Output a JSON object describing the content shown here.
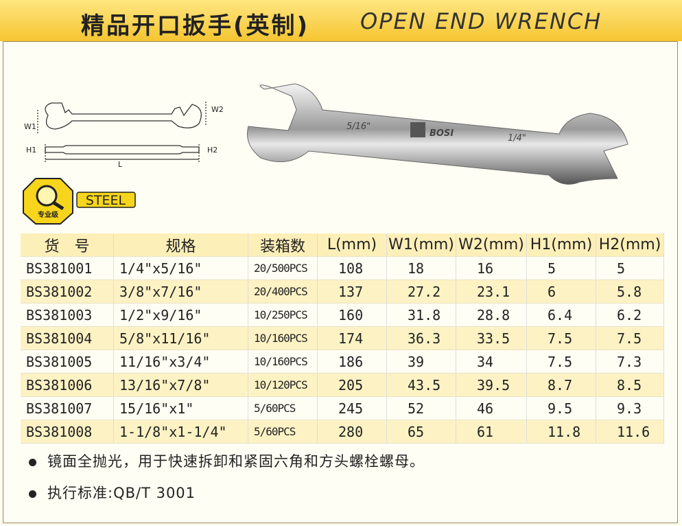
{
  "header": {
    "title_cn": "精品开口扳手(英制)",
    "title_en": "OPEN END WRENCH"
  },
  "diagram": {
    "w1": "W1",
    "w2": "W2",
    "h1": "H1",
    "h2": "H2",
    "l": "L"
  },
  "photo": {
    "left_size": "5/16\"",
    "brand": "BOSI",
    "right_size": "1/4\""
  },
  "badge": {
    "grade": "专业级",
    "material": "STEEL"
  },
  "table": {
    "columns": [
      "货　号",
      "规格",
      "装箱数",
      "L(mm)",
      "W1(mm)",
      "W2(mm)",
      "H1(mm)",
      "H2(mm)"
    ],
    "rows": [
      [
        "BS381001",
        "1/4\"x5/16\"",
        "20/500PCS",
        "108",
        "18",
        "16",
        "5",
        "5"
      ],
      [
        "BS381002",
        "3/8\"x7/16\"",
        "20/400PCS",
        "137",
        "27.2",
        "23.1",
        "6",
        "5.8"
      ],
      [
        "BS381003",
        "1/2\"x9/16\"",
        "10/250PCS",
        "160",
        "31.8",
        "28.8",
        "6.4",
        "6.2"
      ],
      [
        "BS381004",
        "5/8\"x11/16\"",
        "10/160PCS",
        "174",
        "36.3",
        "33.5",
        "7.5",
        "7.5"
      ],
      [
        "BS381005",
        "11/16\"x3/4\"",
        "10/160PCS",
        "186",
        "39",
        "34",
        "7.5",
        "7.3"
      ],
      [
        "BS381006",
        "13/16\"x7/8\"",
        "10/120PCS",
        "205",
        "43.5",
        "39.5",
        "8.7",
        "8.5"
      ],
      [
        "BS381007",
        "15/16\"x1\"",
        "5/60PCS",
        "245",
        "52",
        "46",
        "9.5",
        "9.3"
      ],
      [
        "BS381008",
        "1-1/8\"x1-1/4\"",
        "5/60PCS",
        "280",
        "65",
        "61",
        "11.8",
        "11.6"
      ]
    ]
  },
  "notes": [
    "镜面全抛光，用于快速拆卸和紧固六角和方头螺栓螺母。",
    "执行标准:QB/T 3001"
  ]
}
